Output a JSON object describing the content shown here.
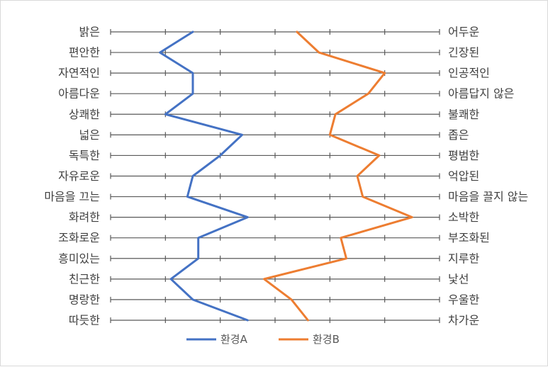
{
  "chart_data": {
    "type": "line",
    "orientation": "vertical-profile",
    "left_labels": [
      "밝은",
      "편안한",
      "자연적인",
      "아름다운",
      "상쾌한",
      "넓은",
      "독특한",
      "자유로운",
      "마음을 끄는",
      "화려한",
      "조화로운",
      "흥미있는",
      "친근한",
      "명랑한",
      "따듯한"
    ],
    "right_labels": [
      "어두운",
      "긴장된",
      "인공적인",
      "아름답지 않은",
      "불쾌한",
      "좁은",
      "평범한",
      "억압된",
      "마음을 끌지 않는",
      "소박한",
      "부조화된",
      "지루한",
      "낯선",
      "우울한",
      "차가운"
    ],
    "scale": {
      "min": 1,
      "max": 7,
      "ticks": [
        1,
        2,
        3,
        4,
        5,
        6,
        7
      ]
    },
    "grid": true,
    "legend_position": "bottom",
    "series": [
      {
        "name": "환경A",
        "color": "#4472C4",
        "values": [
          2.5,
          1.9,
          2.5,
          2.5,
          2.0,
          3.4,
          3.0,
          2.5,
          2.4,
          3.5,
          2.6,
          2.6,
          2.1,
          2.5,
          3.5
        ]
      },
      {
        "name": "환경B",
        "color": "#ED7D31",
        "values": [
          4.4,
          4.8,
          6.0,
          5.7,
          5.1,
          5.0,
          5.9,
          5.5,
          5.6,
          6.5,
          5.2,
          5.3,
          3.8,
          4.3,
          4.6
        ]
      }
    ]
  }
}
